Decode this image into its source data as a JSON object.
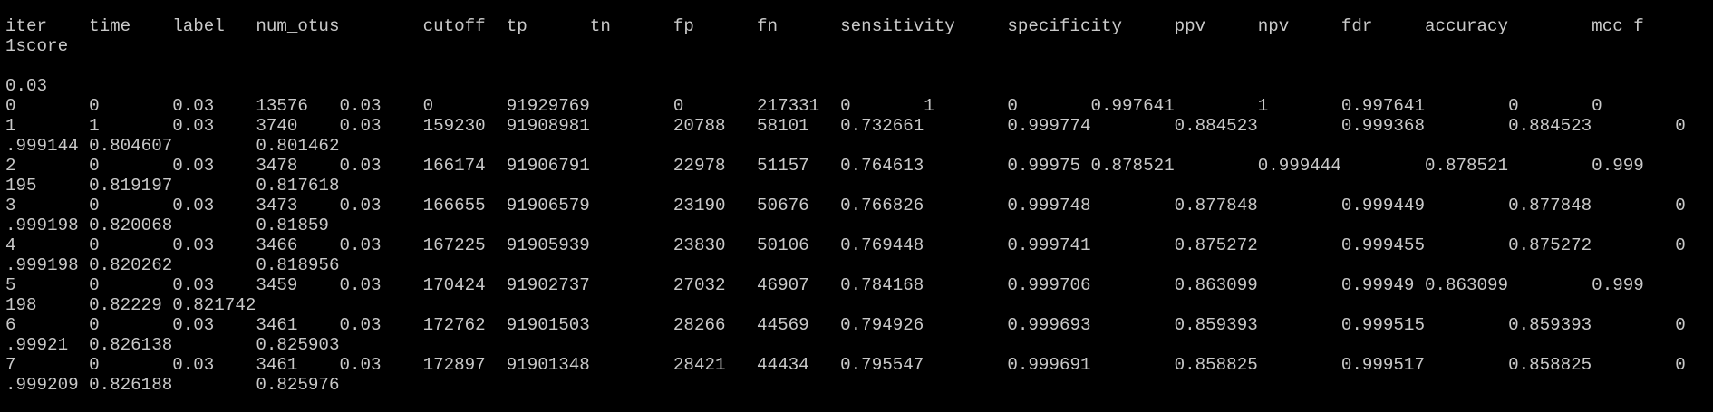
{
  "terminal": {
    "lines": [
      "iter    time    label   num_otus        cutoff  tp      tn      fp      fn      sensitivity     specificity     ppv     npv     fdr     accuracy        mcc f",
      "1score",
      "",
      "0.03",
      "0       0       0.03    13576   0.03    0       91929769        0       217331  0       1       0       0.997641        1       0.997641        0       0",
      "1       1       0.03    3740    0.03    159230  91908981        20788   58101   0.732661        0.999774        0.884523        0.999368        0.884523        0",
      ".999144 0.804607        0.801462",
      "2       0       0.03    3478    0.03    166174  91906791        22978   51157   0.764613        0.99975 0.878521        0.999444        0.878521        0.999",
      "195     0.819197        0.817618",
      "3       0       0.03    3473    0.03    166655  91906579        23190   50676   0.766826        0.999748        0.877848        0.999449        0.877848        0",
      ".999198 0.820068        0.81859",
      "4       0       0.03    3466    0.03    167225  91905939        23830   50106   0.769448        0.999741        0.875272        0.999455        0.875272        0",
      ".999198 0.820262        0.818956",
      "5       0       0.03    3459    0.03    170424  91902737        27032   46907   0.784168        0.999706        0.863099        0.99949 0.863099        0.999",
      "198     0.82229 0.821742",
      "6       0       0.03    3461    0.03    172762  91901503        28266   44569   0.794926        0.999693        0.859393        0.999515        0.859393        0",
      ".99921  0.826138        0.825903",
      "7       0       0.03    3461    0.03    172897  91901348        28421   44434   0.795547        0.999691        0.858825        0.999517        0.858825        0",
      ".999209 0.826188        0.825976"
    ]
  },
  "colors": {
    "background": "#000000",
    "foreground": "#c9c9c9"
  }
}
